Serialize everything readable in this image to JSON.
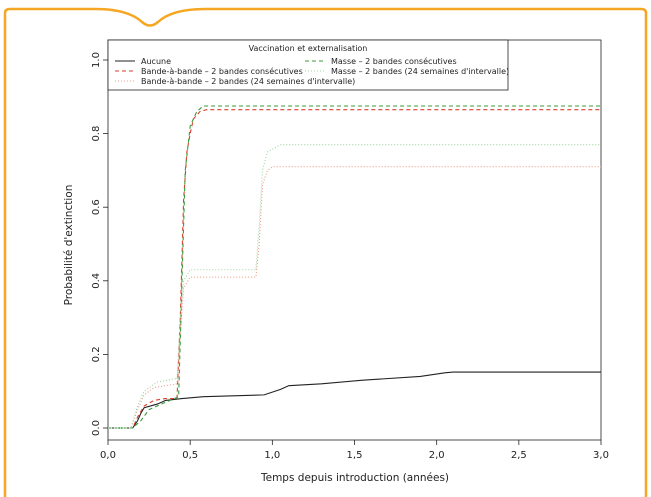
{
  "colors": {
    "frame": "#f5a623",
    "black": "#222222",
    "red": "#d9402b",
    "green": "#3a9a3a",
    "salmon": "#ec9a88",
    "lightgreen": "#9ed49e"
  },
  "chart_data": {
    "type": "line",
    "xlabel": "Temps depuis introduction (années)",
    "ylabel": "Probabilité d'extinction",
    "xlim": [
      0,
      3
    ],
    "ylim": [
      0,
      1
    ],
    "x_ticks": [
      0,
      0.5,
      1,
      1.5,
      2,
      2.5,
      3
    ],
    "x_tick_labels": [
      "0,0",
      "0,5",
      "1,0",
      "1,5",
      "2,0",
      "2,5",
      "3,0"
    ],
    "y_ticks": [
      0,
      0.2,
      0.4,
      0.6,
      0.8,
      1.0
    ],
    "y_tick_labels": [
      "0.0",
      "0.2",
      "0.4",
      "0.6",
      "0.8",
      "1.0"
    ],
    "grid": false,
    "legend": {
      "title": "Vaccination et externalisation",
      "placement": "top",
      "entries": [
        "Aucune",
        "Bande-à-bande – 2 bandes consécutives",
        "Bande-à-bande – 2 bandes (24 semaines d'intervalle)",
        "Masse – 2 bandes consécutives",
        "Masse – 2 bandes (24 semaines d'intervalle)"
      ]
    },
    "series": [
      {
        "name": "Aucune",
        "style": "solid",
        "color": "#222222",
        "points": [
          [
            0,
            0
          ],
          [
            0.15,
            0
          ],
          [
            0.18,
            0.02
          ],
          [
            0.2,
            0.04
          ],
          [
            0.22,
            0.055
          ],
          [
            0.3,
            0.065
          ],
          [
            0.35,
            0.075
          ],
          [
            0.45,
            0.08
          ],
          [
            0.58,
            0.085
          ],
          [
            0.95,
            0.09
          ],
          [
            1.05,
            0.105
          ],
          [
            1.1,
            0.115
          ],
          [
            1.3,
            0.12
          ],
          [
            1.55,
            0.13
          ],
          [
            1.9,
            0.14
          ],
          [
            2.05,
            0.15
          ],
          [
            2.1,
            0.152
          ],
          [
            3.0,
            0.152
          ]
        ]
      },
      {
        "name": "Bande-à-bande – 2 bandes consécutives",
        "style": "dashed",
        "color": "#d9402b",
        "points": [
          [
            0,
            0
          ],
          [
            0.15,
            0
          ],
          [
            0.18,
            0.03
          ],
          [
            0.22,
            0.06
          ],
          [
            0.28,
            0.075
          ],
          [
            0.35,
            0.08
          ],
          [
            0.42,
            0.08
          ],
          [
            0.44,
            0.3
          ],
          [
            0.46,
            0.62
          ],
          [
            0.48,
            0.75
          ],
          [
            0.5,
            0.8
          ],
          [
            0.52,
            0.84
          ],
          [
            0.56,
            0.86
          ],
          [
            0.6,
            0.865
          ],
          [
            3.0,
            0.865
          ]
        ]
      },
      {
        "name": "Bande-à-bande – 2 bandes (24 semaines d'intervalle)",
        "style": "dotted",
        "color": "#ec9a88",
        "points": [
          [
            0,
            0
          ],
          [
            0.14,
            0
          ],
          [
            0.18,
            0.05
          ],
          [
            0.22,
            0.09
          ],
          [
            0.28,
            0.11
          ],
          [
            0.42,
            0.12
          ],
          [
            0.44,
            0.25
          ],
          [
            0.46,
            0.38
          ],
          [
            0.5,
            0.41
          ],
          [
            0.9,
            0.41
          ],
          [
            0.92,
            0.5
          ],
          [
            0.94,
            0.66
          ],
          [
            0.97,
            0.7
          ],
          [
            1.0,
            0.71
          ],
          [
            3.0,
            0.71
          ]
        ]
      },
      {
        "name": "Masse – 2 bandes consécutives",
        "style": "dashed",
        "color": "#3a9a3a",
        "points": [
          [
            0,
            0
          ],
          [
            0.15,
            0
          ],
          [
            0.2,
            0.02
          ],
          [
            0.25,
            0.05
          ],
          [
            0.35,
            0.07
          ],
          [
            0.43,
            0.085
          ],
          [
            0.45,
            0.4
          ],
          [
            0.47,
            0.7
          ],
          [
            0.5,
            0.82
          ],
          [
            0.54,
            0.86
          ],
          [
            0.58,
            0.875
          ],
          [
            3.0,
            0.875
          ]
        ]
      },
      {
        "name": "Masse – 2 bandes (24 semaines d'intervalle)",
        "style": "dotted",
        "color": "#9ed49e",
        "points": [
          [
            0,
            0
          ],
          [
            0.14,
            0
          ],
          [
            0.18,
            0.06
          ],
          [
            0.22,
            0.1
          ],
          [
            0.3,
            0.125
          ],
          [
            0.42,
            0.135
          ],
          [
            0.44,
            0.3
          ],
          [
            0.46,
            0.4
          ],
          [
            0.5,
            0.43
          ],
          [
            0.9,
            0.43
          ],
          [
            0.92,
            0.55
          ],
          [
            0.94,
            0.7
          ],
          [
            0.97,
            0.75
          ],
          [
            1.05,
            0.77
          ],
          [
            3.0,
            0.77
          ]
        ]
      }
    ]
  }
}
